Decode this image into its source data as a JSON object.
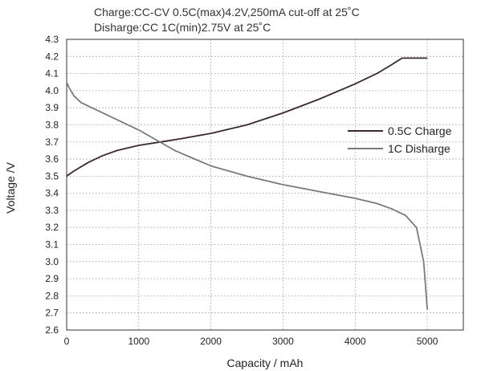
{
  "chart_data": {
    "type": "line",
    "title_lines": [
      "Charge:CC-CV 0.5C(max)4.2V,250mA cut-off at 25˚C",
      "Disharge:CC 1C(min)2.75V  at 25˚C"
    ],
    "xlabel": "Capacity / mAh",
    "ylabel": "Voltage /V",
    "xlim": [
      0,
      5500
    ],
    "ylim": [
      2.6,
      4.3
    ],
    "x_ticks": [
      0,
      1000,
      2000,
      3000,
      4000,
      5000
    ],
    "y_ticks": [
      "2.6",
      "2.7",
      "2.8",
      "2.9",
      "3.0",
      "3.1",
      "3.2",
      "3.3",
      "3.4",
      "3.5",
      "3.6",
      "3.7",
      "3.8",
      "3.9",
      "4.0",
      "4.1",
      "4.2",
      "4.3"
    ],
    "grid": true,
    "legend_position": "right",
    "series": [
      {
        "name": "0.5C Charge",
        "color": "#3a2a30",
        "x": [
          0,
          100,
          300,
          500,
          700,
          1000,
          1300,
          1600,
          2000,
          2500,
          3000,
          3500,
          4000,
          4300,
          4500,
          4650,
          4700,
          5000
        ],
        "y": [
          3.5,
          3.53,
          3.58,
          3.62,
          3.65,
          3.68,
          3.7,
          3.72,
          3.75,
          3.8,
          3.87,
          3.95,
          4.04,
          4.1,
          4.15,
          4.19,
          4.19,
          4.19
        ]
      },
      {
        "name": "1C Disharge",
        "color": "#7b7882",
        "x": [
          0,
          30,
          100,
          200,
          500,
          1000,
          1500,
          2000,
          2500,
          3000,
          3500,
          4000,
          4300,
          4500,
          4700,
          4850,
          4950,
          5000
        ],
        "y": [
          4.05,
          4.02,
          3.97,
          3.93,
          3.87,
          3.77,
          3.65,
          3.56,
          3.5,
          3.45,
          3.41,
          3.37,
          3.34,
          3.31,
          3.27,
          3.2,
          3.0,
          2.72
        ]
      }
    ]
  }
}
